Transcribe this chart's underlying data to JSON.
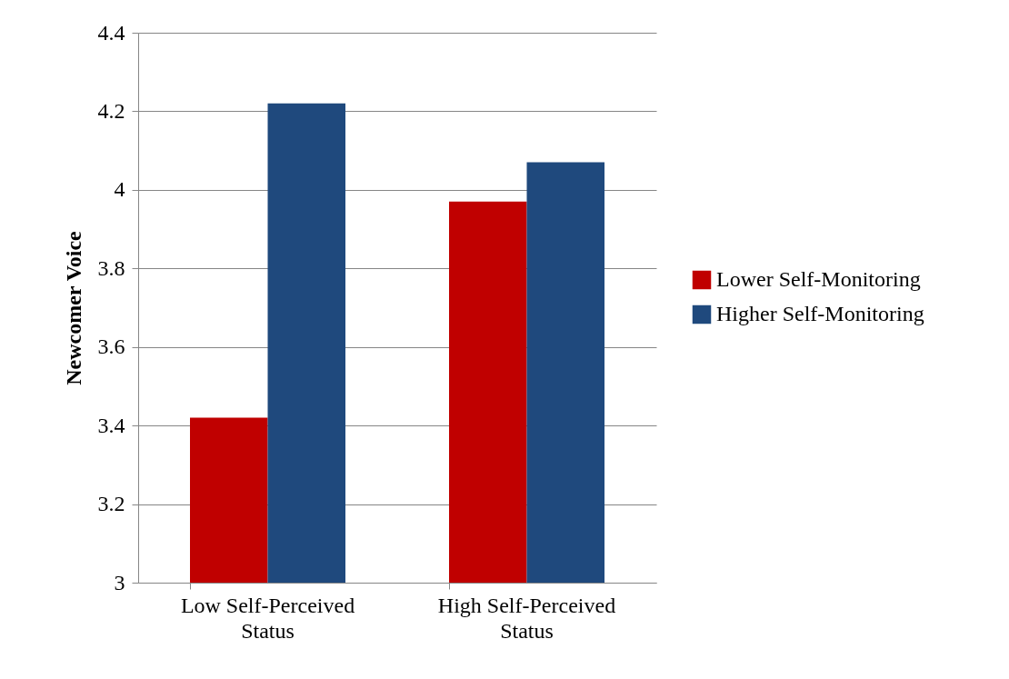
{
  "chart_data": {
    "type": "bar",
    "ylabel": "Newcomer Voice",
    "categories": [
      "Low Self-Perceived Status",
      "High Self-Perceived Status"
    ],
    "series": [
      {
        "name": "Lower Self-Monitoring",
        "color": "#c00000",
        "values": [
          3.42,
          3.97
        ]
      },
      {
        "name": "Higher Self-Monitoring",
        "color": "#1f497d",
        "values": [
          4.22,
          4.07
        ]
      }
    ],
    "ylim": [
      3,
      4.4
    ],
    "yticks": [
      3,
      3.2,
      3.4,
      3.6,
      3.8,
      4,
      4.2,
      4.4
    ],
    "grid": "y",
    "legend": "right"
  }
}
